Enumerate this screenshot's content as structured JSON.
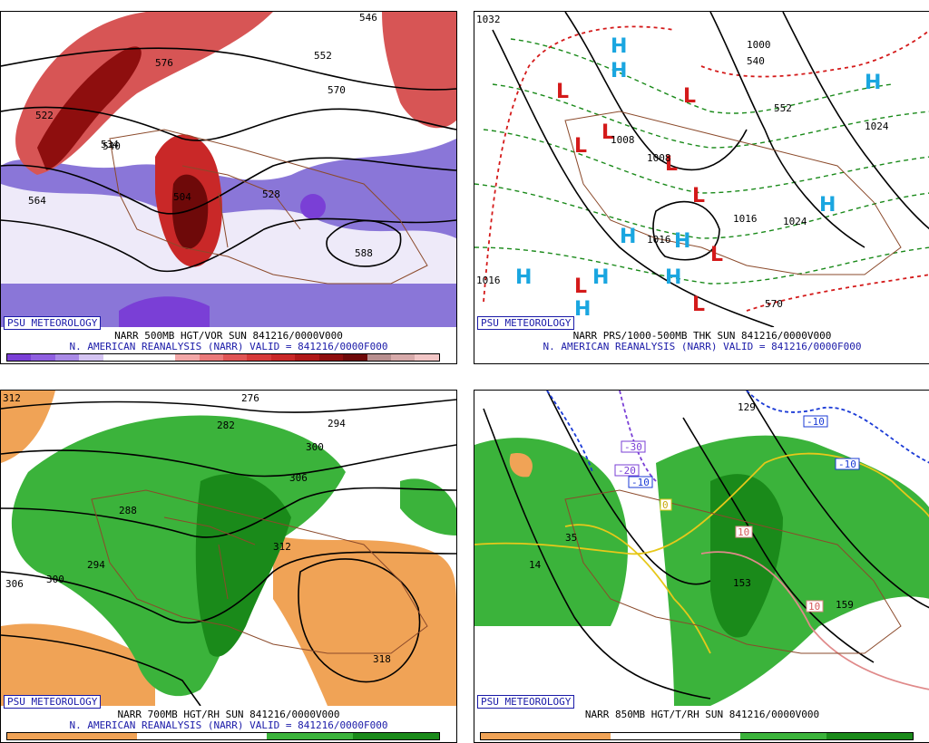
{
  "credit": "PSU METEOROLOGY",
  "panels": {
    "vor500": {
      "caption1": "NARR 500MB HGT/VOR SUN 841216/0000V000",
      "caption2": "N. AMERICAN REANALYSIS (NARR) VALID = 841216/0000F000",
      "scale": [
        "0",
        "2",
        "4",
        "6",
        "8",
        "10",
        "12",
        "14",
        "16",
        "18",
        "20",
        "22",
        "24",
        "26",
        "28",
        "30",
        "32",
        "34"
      ],
      "colors": [
        "#7a3fd6",
        "#8f5fe0",
        "#a98ae6",
        "#d4c4f2",
        "#ffffff",
        "#ffffff",
        "#ffffff",
        "#f3a8a8",
        "#ea7a7a",
        "#e05555",
        "#d63a3a",
        "#c92828",
        "#b01818",
        "#8e0e0e",
        "#6e0909",
        "#b88f8f",
        "#d7aaaa",
        "#f2c6c6"
      ],
      "labels": [
        "522",
        "534",
        "540",
        "552",
        "564",
        "576",
        "588",
        "546",
        "528",
        "504",
        "570"
      ]
    },
    "thk": {
      "caption1": "NARR PRS/1000-500MB THK SUN 841216/0000V000",
      "caption2": "N. AMERICAN REANALYSIS (NARR) VALID = 841216/0000F000",
      "labels": [
        "1032",
        "1008",
        "1008",
        "1000",
        "1024",
        "1016",
        "1016",
        "540",
        "552",
        "570",
        "1016",
        "1024"
      ]
    },
    "rh700": {
      "caption1": "NARR 700MB HGT/RH SUN 841216/0000V000",
      "caption2": "N. AMERICAN REANALYSIS (NARR) VALID = 841216/0000F000",
      "scale": [
        "10",
        "30",
        "50",
        "70",
        "90"
      ],
      "labels": [
        "312",
        "276",
        "282",
        "288",
        "294",
        "300",
        "306",
        "300",
        "306",
        "312",
        "318",
        "294"
      ]
    },
    "t850": {
      "caption1": "NARR 850MB HGT/T/RH SUN 841216/0000V000",
      "scale": [
        "10",
        "30",
        "50",
        "70",
        "90"
      ],
      "labels": [
        "-30",
        "-20",
        "-10",
        "-10",
        "-10",
        "0",
        "10",
        "10",
        "35",
        "14",
        "153",
        "159",
        "129"
      ]
    }
  }
}
